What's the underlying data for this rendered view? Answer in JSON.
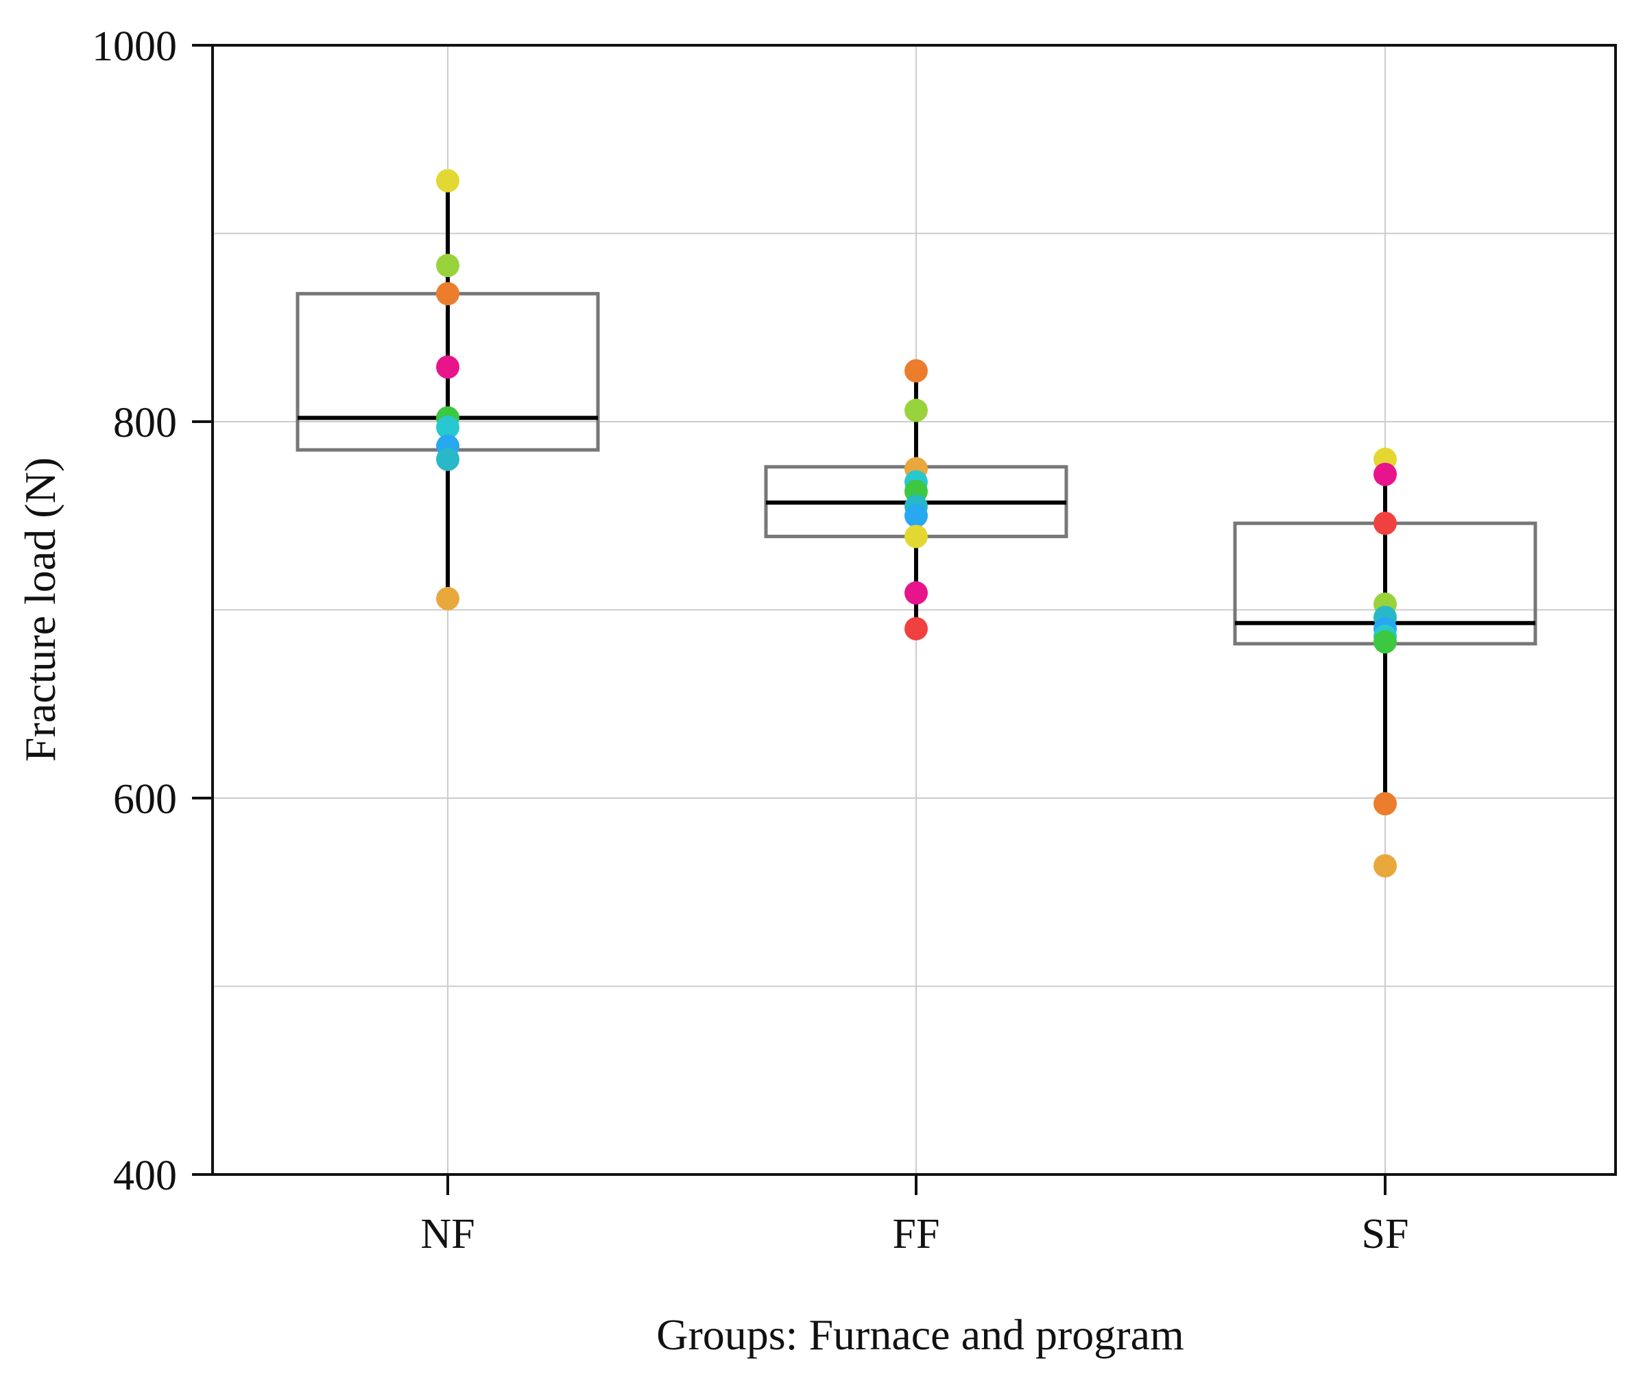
{
  "chart_data": {
    "type": "box",
    "title": "",
    "xlabel": "Groups: Furnace and program",
    "ylabel": "Fracture load (N)",
    "ylim": [
      400,
      1000
    ],
    "yticks": [
      400,
      600,
      800,
      1000
    ],
    "ygrid": [
      500,
      600,
      700,
      800,
      900
    ],
    "grid": true,
    "categories": [
      "NF",
      "FF",
      "SF"
    ],
    "boxes": [
      {
        "group": "NF",
        "whisker_low": 706,
        "q1": 785,
        "median": 802,
        "q3": 868,
        "whisker_high": 928
      },
      {
        "group": "FF",
        "whisker_low": 690,
        "q1": 739,
        "median": 757,
        "q3": 776,
        "whisker_high": 827
      },
      {
        "group": "SF",
        "whisker_low": 597,
        "q1": 682,
        "median": 693,
        "q3": 746,
        "whisker_high": 780
      }
    ],
    "points": [
      {
        "group": "NF",
        "values": [
          928,
          883,
          868,
          829,
          802,
          797,
          787,
          780,
          706
        ],
        "colors": [
          "#e3d832",
          "#99d33c",
          "#ec7d2c",
          "#e8148c",
          "#3cc840",
          "#28c8d0",
          "#28a8f0",
          "#28b8c8",
          "#e8a83c"
        ]
      },
      {
        "group": "FF",
        "values": [
          827,
          806,
          775,
          768,
          763,
          755,
          750,
          739,
          709,
          690
        ],
        "colors": [
          "#ec7d2c",
          "#99d33c",
          "#e8a83c",
          "#28c8d0",
          "#3cc840",
          "#28b8c8",
          "#28a8f0",
          "#e3d832",
          "#e8148c",
          "#f04040"
        ]
      },
      {
        "group": "SF",
        "values": [
          780,
          772,
          746,
          703,
          696,
          690,
          686,
          683,
          597,
          564
        ],
        "colors": [
          "#e3d832",
          "#e8148c",
          "#f04040",
          "#99d33c",
          "#28b8c8",
          "#28a8f0",
          "#28c8d0",
          "#3cc840",
          "#ec7d2c",
          "#e8a83c"
        ]
      }
    ]
  }
}
